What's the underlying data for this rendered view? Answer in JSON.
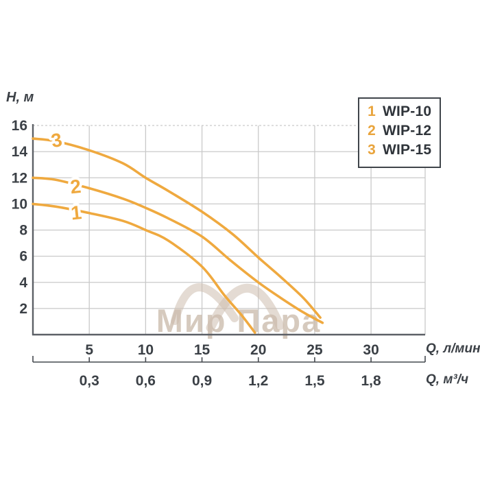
{
  "page": {
    "background": "#ffffff"
  },
  "legend": {
    "items": [
      {
        "num": "1",
        "label": "WIP-10"
      },
      {
        "num": "2",
        "label": "WIP-12"
      },
      {
        "num": "3",
        "label": "WIP-15"
      }
    ]
  },
  "watermark": {
    "text": "Мир Пара"
  },
  "chart_data": {
    "type": "line",
    "title": "",
    "ylabel": "H, м",
    "xlabel": "Q, л/мин",
    "xlabel2": "Q, м³/ч",
    "xlim": [
      0,
      34.8
    ],
    "ylim": [
      0,
      16
    ],
    "grid": true,
    "legend_position": "top-right",
    "y_ticks": [
      16,
      14,
      12,
      10,
      8,
      6,
      4,
      2
    ],
    "x_ticks": [
      5,
      10,
      15,
      20,
      25,
      30
    ],
    "x_ticks2": [
      "0,3",
      "0,6",
      "0,9",
      "1,2",
      "1,5",
      "1,8"
    ],
    "colors": {
      "curve": "#efa93f",
      "grid": "#c9c9c9",
      "axis": "#5c6066",
      "tick_line": "#44484e",
      "text": "#3b4046",
      "watermark": "#cdbdae"
    },
    "series": [
      {
        "name": "WIP-10",
        "curve_number": "1",
        "points": [
          [
            0,
            10
          ],
          [
            2,
            9.8
          ],
          [
            5,
            9.3
          ],
          [
            8,
            8.7
          ],
          [
            10,
            8.0
          ],
          [
            12,
            7.2
          ],
          [
            15,
            5.2
          ],
          [
            17,
            3.0
          ],
          [
            18.5,
            1.5
          ],
          [
            19.7,
            0.15
          ]
        ],
        "label_at": {
          "q": 3.9,
          "h": 9.3,
          "rotate": -6
        }
      },
      {
        "name": "WIP-12",
        "curve_number": "2",
        "points": [
          [
            0,
            12
          ],
          [
            2,
            11.85
          ],
          [
            5,
            11.2
          ],
          [
            8,
            10.4
          ],
          [
            10,
            9.7
          ],
          [
            12,
            8.9
          ],
          [
            15,
            7.5
          ],
          [
            17.5,
            5.7
          ],
          [
            20,
            4.0
          ],
          [
            22,
            2.8
          ],
          [
            24,
            1.7
          ],
          [
            25.7,
            0.9
          ]
        ],
        "label_at": {
          "q": 3.85,
          "h": 11.3,
          "rotate": -6
        }
      },
      {
        "name": "WIP-15",
        "curve_number": "3",
        "points": [
          [
            0,
            15
          ],
          [
            2,
            14.8
          ],
          [
            5,
            14.1
          ],
          [
            8,
            13.1
          ],
          [
            10,
            12.0
          ],
          [
            12,
            11.0
          ],
          [
            15,
            9.4
          ],
          [
            17.7,
            7.7
          ],
          [
            20,
            5.9
          ],
          [
            22,
            4.4
          ],
          [
            24,
            2.8
          ],
          [
            25.5,
            1.3
          ]
        ],
        "label_at": {
          "q": 2.2,
          "h": 14.85,
          "rotate": -10
        }
      }
    ]
  }
}
